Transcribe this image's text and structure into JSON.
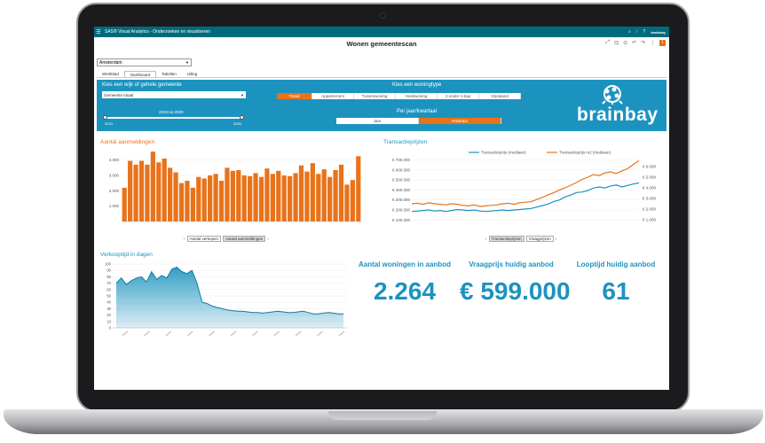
{
  "app": {
    "title": "SAS® Visual Analytics - Onderzoeken en visualiseren",
    "menu_icon": "hamburger-icon",
    "logo": "brainbay"
  },
  "report": {
    "title": "Wonen gemeentescan",
    "notification_count": "1"
  },
  "city_select": {
    "value": "Amsterdam"
  },
  "tabs": [
    {
      "label": "Werkblad"
    },
    {
      "label": "Dashboard"
    },
    {
      "label": "Tabellen"
    },
    {
      "label": "Uitleg"
    }
  ],
  "filters": {
    "wijk_label": "Kies een wijk of gehele gemeente",
    "wijk_value": "Gemeente totaal",
    "slider_label": "2010 tot 2020",
    "slider_min": "2010",
    "slider_max": "2020",
    "type_label": "Kies een woningtype",
    "types": [
      {
        "label": "Totaal",
        "selected": true
      },
      {
        "label": "Appartement",
        "selected": false
      },
      {
        "label": "Tussenwoning",
        "selected": false
      },
      {
        "label": "Hoekwoning",
        "selected": false
      },
      {
        "label": "2-onder-1-kap",
        "selected": false
      },
      {
        "label": "Vrijstaand",
        "selected": false
      }
    ],
    "period_label": "Per jaar/kwartaal",
    "periods": [
      {
        "label": "Jaar",
        "selected": false
      },
      {
        "label": "Kwartaal",
        "selected": true
      }
    ],
    "brand": "brainbay"
  },
  "colors": {
    "accent_teal": "#1c93bf",
    "accent_orange": "#e8731a",
    "topbar": "#006b7c"
  },
  "aanmeldingen": {
    "title": "Aantal aanmeldingen",
    "buttons": [
      {
        "label": "Aantal verkopen",
        "selected": false
      },
      {
        "label": "Aantal aanmeldingen",
        "selected": true
      }
    ]
  },
  "transactie": {
    "title": "Transactieprijzen",
    "buttons": [
      {
        "label": "Transactieprijzen",
        "selected": true
      },
      {
        "label": "Vraagprijzen",
        "selected": false
      }
    ]
  },
  "verkooptijd": {
    "title": "Verkooptijd in dagen"
  },
  "kpis": [
    {
      "label": "Aantal woningen in aanbod",
      "value": "2.264"
    },
    {
      "label": "Vraagprijs huidig aanbod",
      "value": "€ 599.000"
    },
    {
      "label": "Looptijd huidig aanbod",
      "value": "61"
    }
  ],
  "chart_data": [
    {
      "type": "bar",
      "title": "Aantal aanmeldingen",
      "ylim": [
        0,
        4500
      ],
      "yticks": [
        "1.000",
        "2.000",
        "3.000",
        "4.000"
      ],
      "ytick_values": [
        1000,
        2000,
        3000,
        4000
      ],
      "values": [
        2200,
        3950,
        3700,
        3950,
        3700,
        4550,
        3850,
        4100,
        3500,
        3200,
        2500,
        2650,
        2200,
        2900,
        2800,
        3000,
        3100,
        2650,
        3500,
        3300,
        3350,
        3000,
        2950,
        3150,
        2900,
        3450,
        3100,
        3300,
        3000,
        2950,
        3150,
        3650,
        3250,
        3800,
        3100,
        3400,
        2900,
        3350,
        3700,
        2400,
        2700,
        4250
      ],
      "color": "#e8731a"
    },
    {
      "type": "line",
      "title": "Transactieprijzen",
      "series": [
        {
          "name": "Transactieprijs (mediaan)",
          "axis": "left",
          "color": "#1c93bf",
          "values": [
            185000,
            190000,
            195000,
            200000,
            190000,
            195000,
            185000,
            195000,
            205000,
            200000,
            195000,
            200000,
            190000,
            185000,
            190000,
            195000,
            200000,
            195000,
            200000,
            205000,
            210000,
            215000,
            230000,
            245000,
            260000,
            285000,
            300000,
            330000,
            350000,
            375000,
            380000,
            395000,
            420000,
            430000,
            420000,
            440000,
            450000,
            430000,
            445000,
            460000,
            470000
          ]
        },
        {
          "name": "Transactieprijs m2 (mediaan)",
          "axis": "right",
          "color": "#e8731a",
          "values": [
            2500,
            2550,
            2450,
            2600,
            2500,
            2450,
            2400,
            2500,
            2450,
            2350,
            2300,
            2400,
            2250,
            2300,
            2350,
            2400,
            2500,
            2550,
            2450,
            2600,
            2650,
            2700,
            2900,
            3100,
            3350,
            3550,
            3800,
            4000,
            4250,
            4500,
            4800,
            5000,
            5250,
            5150,
            5400,
            5500,
            5350,
            5600,
            5800,
            6200,
            6550
          ]
        }
      ],
      "left_ticks": [
        "€ 100.000",
        "€ 200.000",
        "€ 300.000",
        "€ 400.000",
        "€ 500.000",
        "€ 600.000",
        "€ 700.000"
      ],
      "left_tick_values": [
        100000,
        200000,
        300000,
        400000,
        500000,
        600000,
        700000
      ],
      "right_ticks": [
        "€ 1.000",
        "€ 2.000",
        "€ 3.000",
        "€ 4.000",
        "€ 5.000",
        "€ 6.000"
      ],
      "right_tick_values": [
        1000,
        2000,
        3000,
        4000,
        5000,
        6000
      ],
      "left_ylim": [
        50000,
        740000
      ],
      "right_ylim": [
        500,
        7000
      ]
    },
    {
      "type": "area",
      "title": "Verkooptijd in dagen",
      "ylim": [
        0,
        100
      ],
      "yticks": [
        "0",
        "10",
        "20",
        "30",
        "40",
        "50",
        "60",
        "70",
        "80",
        "90",
        "100"
      ],
      "ytick_values": [
        0,
        10,
        20,
        30,
        40,
        50,
        60,
        70,
        80,
        90,
        100
      ],
      "values": [
        70,
        78,
        68,
        74,
        78,
        80,
        72,
        88,
        76,
        82,
        78,
        92,
        95,
        88,
        85,
        90,
        70,
        40,
        38,
        34,
        32,
        30,
        28,
        27,
        26,
        26,
        25,
        24,
        24,
        23,
        24,
        25,
        26,
        25,
        24,
        24,
        25,
        26,
        24,
        22,
        22,
        23,
        24,
        23,
        22,
        22
      ],
      "color": "#1c93bf"
    }
  ]
}
